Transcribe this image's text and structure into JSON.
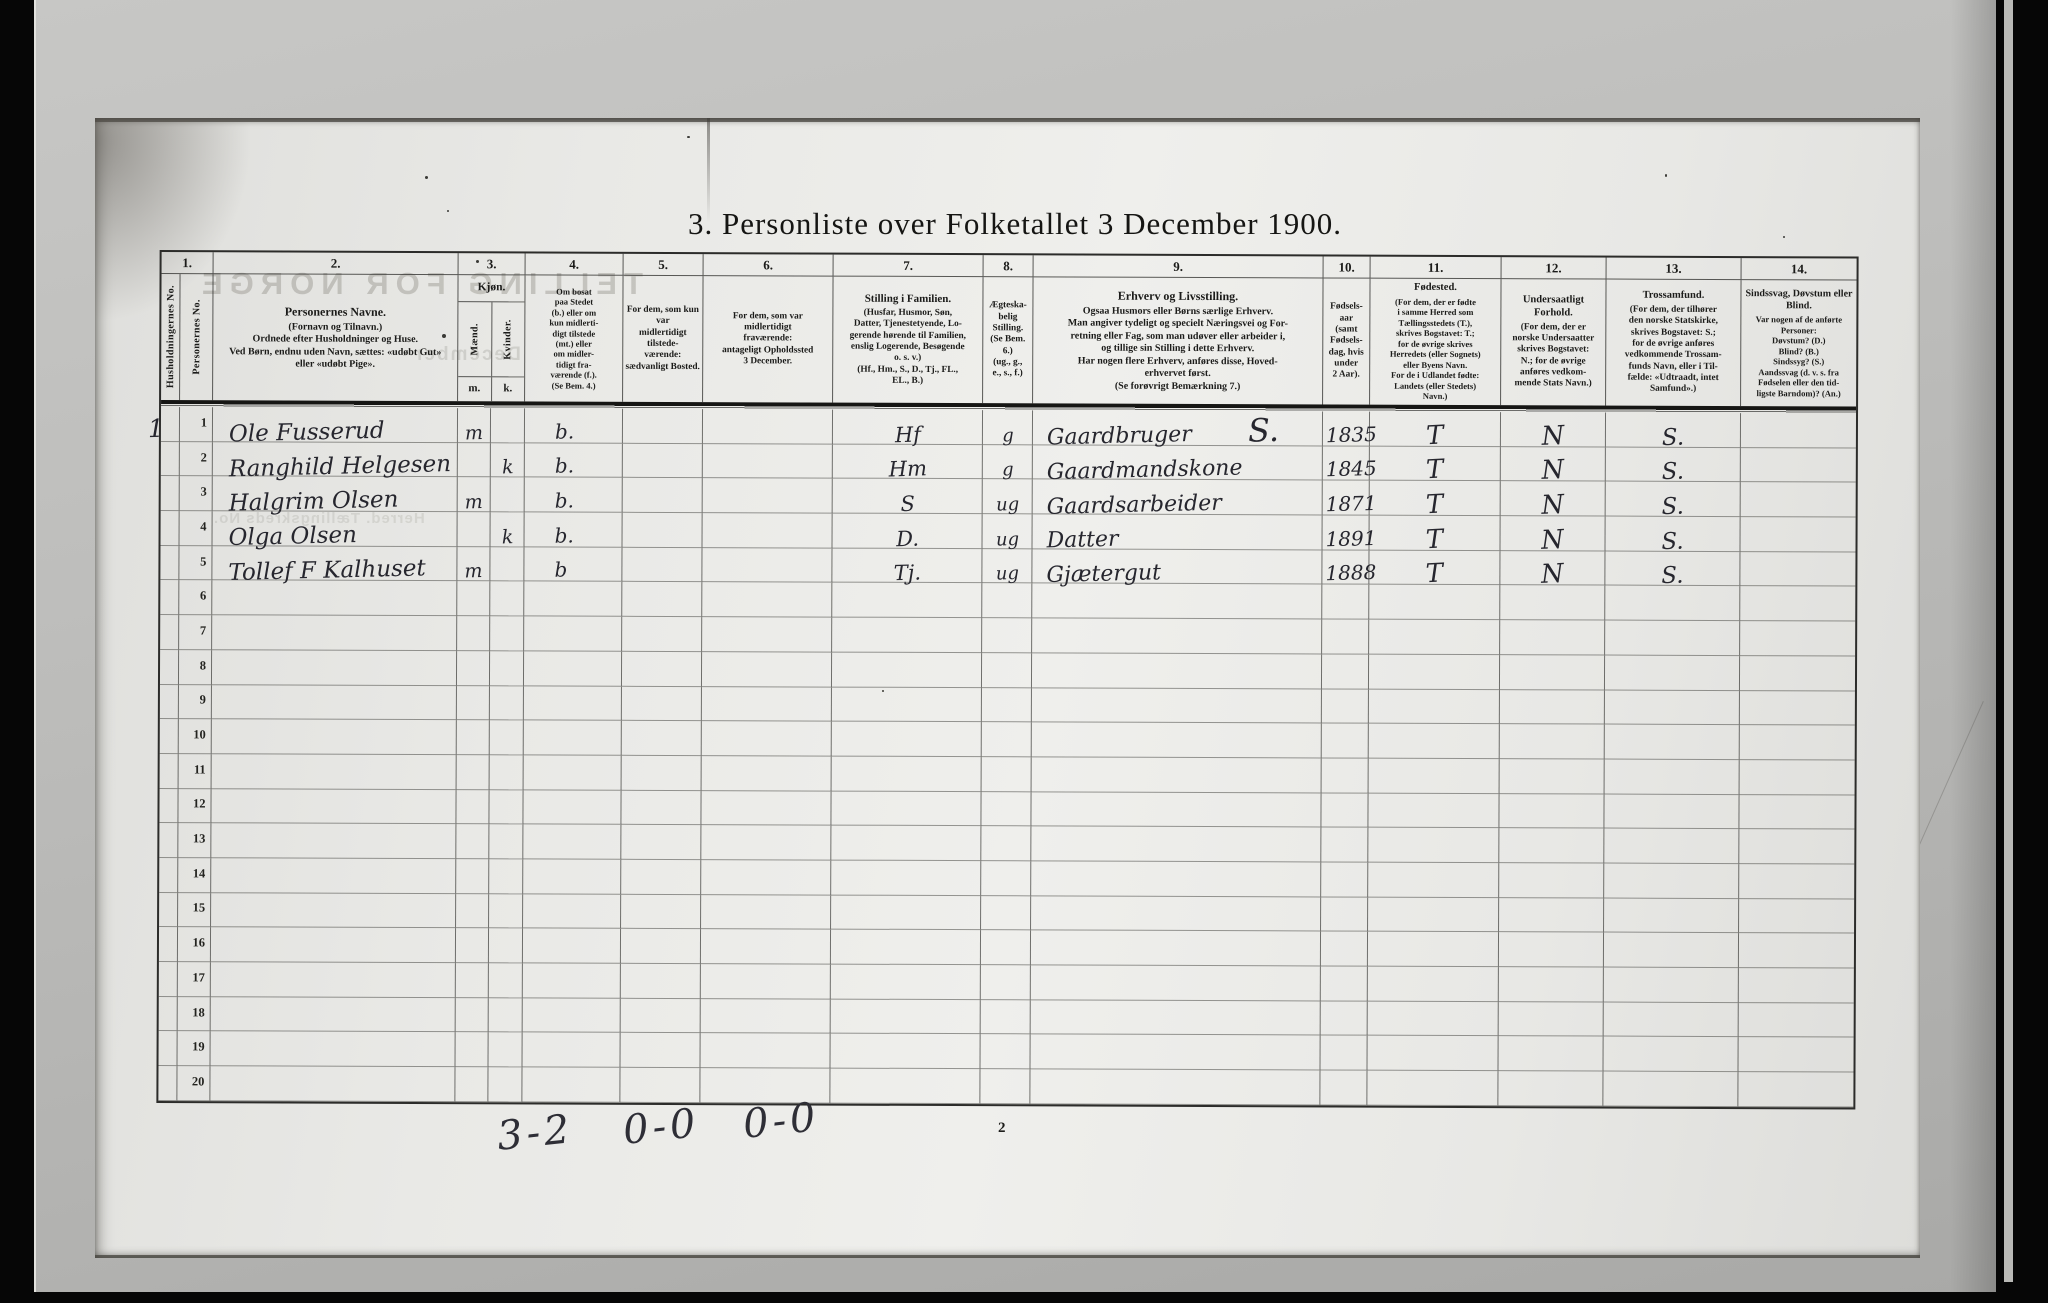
{
  "page": {
    "title": "3. Personliste over Folketallet 3 December 1900.",
    "page_number": "2"
  },
  "palette": {
    "background": "#060606",
    "outer_page": "#b9b9b6",
    "paper": "#ebebe8",
    "print_ink": "#1b1b19",
    "hand_ink": "#26262e"
  },
  "table": {
    "column_numbers": [
      "1.",
      "2.",
      "3.",
      "4.",
      "5.",
      "6.",
      "7.",
      "8.",
      "9.",
      "10.",
      "11.",
      "12.",
      "13.",
      "14."
    ],
    "headers": {
      "col1a": "Husholdningernes No.",
      "col1b": "Personernes No.",
      "col2": {
        "title": "Personernes Navne.",
        "lines": [
          "(Fornavn og Tilnavn.)",
          "Ordnede efter Husholdninger og Huse.",
          "Ved Børn, endnu uden Navn, sættes: «udøbt Gut»",
          "eller «udøbt Pige»."
        ]
      },
      "col3": {
        "title": "Kjøn.",
        "male": "Mænd.",
        "female": "Kvinder.",
        "m": "m.",
        "k": "k."
      },
      "col4": {
        "lines": [
          "Om bosat",
          "paa Stedet",
          "(b.) eller om",
          "kun midlerti-",
          "digt tilstede",
          "(mt.) eller",
          "om midler-",
          "tidigt fra-",
          "værende (f.).",
          "(Se Bem. 4.)"
        ]
      },
      "col5": {
        "lines": [
          "For dem, som kun var",
          "midlertidigt tilstede-",
          "værende:",
          "sædvanligt Bosted."
        ]
      },
      "col6": {
        "lines": [
          "For dem, som var",
          "midlertidigt",
          "fraværende:",
          "antageligt Opholdssted",
          "3 December."
        ]
      },
      "col7": {
        "title": "Stilling i Familien.",
        "lines": [
          "(Husfar, Husmor, Søn,",
          "Datter, Tjenestetyende, Lo-",
          "gerende hørende til Familien,",
          "enslig Logerende, Besøgende",
          "o. s. v.)",
          "(Hf., Hm., S., D., Tj., FL.,",
          "EL., B.)"
        ]
      },
      "col8": {
        "lines": [
          "Ægteska-",
          "belig",
          "Stilling.",
          "(Se Bem. 6.)",
          "(ug., g.,",
          "e., s., f.)"
        ]
      },
      "col9": {
        "title": "Erhverv og Livsstilling.",
        "lines": [
          "Ogsaa Husmors eller Børns særlige Erhverv.",
          "Man angiver tydeligt og specielt Næringsvei og For-",
          "retning eller Fag, som man udøver eller arbeider i,",
          "og tillige sin Stilling i dette Erhverv.",
          "Har nogen flere Erhverv, anføres disse, Hoved-",
          "erhvervet først.",
          "(Se forøvrigt Bemærkning 7.)"
        ]
      },
      "col10": {
        "lines": [
          "Fødsels-",
          "aar",
          "(samt",
          "Fødsels-",
          "dag, hvis",
          "under",
          "2 Aar)."
        ]
      },
      "col11": {
        "title": "Fødested.",
        "lines": [
          "(For dem, der er fødte",
          "i samme Herred som",
          "Tællingsstedets (T.),",
          "skrives Bogstavet: T.;",
          "for de øvrige skrives",
          "Herredets (eller Sognets)",
          "eller Byens Navn.",
          "For de i Udlandet fødte:",
          "Landets (eller Stedets)",
          "Navn.)"
        ]
      },
      "col12": {
        "title": "Undersaatligt Forhold.",
        "lines": [
          "(For dem, der er",
          "norske Undersaatter",
          "skrives Bogstavet:",
          "N.; for de øvrige",
          "anføres vedkom-",
          "mende Stats Navn.)"
        ]
      },
      "col13": {
        "title": "Trossamfund.",
        "lines": [
          "(For dem, der tilhører",
          "den norske Statskirke,",
          "skrives Bogstavet: S.;",
          "for de øvrige anføres",
          "vedkommende Trossam-",
          "funds Navn, eller i Til-",
          "fælde: «Udtraadt, intet",
          "Samfund».)"
        ]
      },
      "col14": {
        "title": "Sindssvag, Døvstum eller Blind.",
        "lines": [
          "Var nogen af de anførte",
          "Personer:",
          "Døvstum?      (D.)",
          "Blind?             (B.)",
          "Sindssyg?      (S.)",
          "Aandssvag (d. v. s. fra",
          "Fødselen eller den tid-",
          "ligste Barndom)? (An.)"
        ]
      }
    },
    "rows": [
      {
        "household": "1",
        "no": "1",
        "name": "Ole Fusserud",
        "m": "m",
        "bosat": "b.",
        "stilling": "Hf",
        "aegteskab": "g",
        "erhverv": "Gaardbruger",
        "erhverv_mark": "S.",
        "aar": "1835",
        "fodested": "T",
        "undersaat": "N",
        "trossamfund": "S."
      },
      {
        "no": "2",
        "name": "Ranghild Helgesen",
        "k": "k",
        "bosat": "b.",
        "stilling": "Hm",
        "aegteskab": "g",
        "erhverv": "Gaardmandskone",
        "aar": "1845",
        "fodested": "T",
        "undersaat": "N",
        "trossamfund": "S."
      },
      {
        "no": "3",
        "name": "Halgrim Olsen",
        "m": "m",
        "bosat": "b.",
        "stilling": "S",
        "aegteskab": "ug",
        "erhverv": "Gaardsarbeider",
        "aar": "1871",
        "fodested": "T",
        "undersaat": "N",
        "trossamfund": "S."
      },
      {
        "no": "4",
        "name": "Olga Olsen",
        "k": "k",
        "bosat": "b.",
        "stilling": "D.",
        "aegteskab": "ug",
        "erhverv": "Datter",
        "aar": "1891",
        "fodested": "T",
        "undersaat": "N",
        "trossamfund": "S."
      },
      {
        "no": "5",
        "name": "Tollef F Kalhuset",
        "m": "m",
        "bosat": "b",
        "stilling": "Tj.",
        "aegteskab": "ug",
        "erhverv": "Gjætergut",
        "aar": "1888",
        "fodested": "T",
        "undersaat": "N",
        "trossamfund": "S."
      },
      {
        "no": "6"
      },
      {
        "no": "7"
      },
      {
        "no": "8"
      },
      {
        "no": "9"
      },
      {
        "no": "10"
      },
      {
        "no": "11"
      },
      {
        "no": "12"
      },
      {
        "no": "13"
      },
      {
        "no": "14"
      },
      {
        "no": "15"
      },
      {
        "no": "16"
      },
      {
        "no": "17"
      },
      {
        "no": "18"
      },
      {
        "no": "19"
      },
      {
        "no": "20"
      }
    ]
  },
  "annotations": {
    "tally_marks": [
      "3-2",
      "0-0",
      "0-0"
    ]
  },
  "bleed_through": {
    "big": "TELLING FOR NORGE",
    "december": "December",
    "herred": "Herred.   Tællingskreds No."
  }
}
